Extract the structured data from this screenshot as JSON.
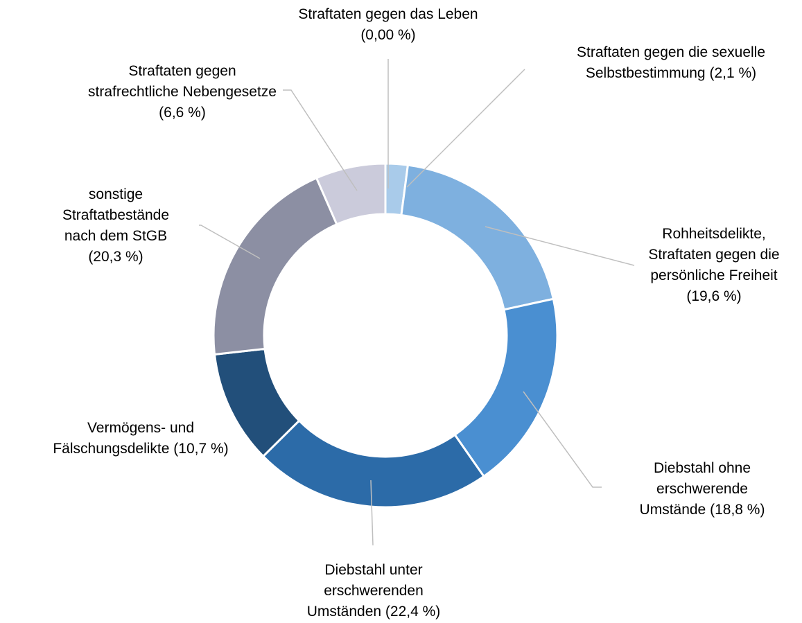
{
  "chart_data": {
    "type": "donut",
    "categories": [
      "Straftaten gegen das Leben",
      "Straftaten gegen die sexuelle Selbstbestimmung",
      "Rohheitsdelikte, Straftaten gegen die persönliche Freiheit",
      "Diebstahl ohne erschwerende Umstände",
      "Diebstahl unter erschwerenden Umständen",
      "Vermögens- und Fälschungsdelikte",
      "sonstige Straftatbestände nach dem StGB",
      "Straftaten gegen strafrechtliche Nebengesetze"
    ],
    "values": [
      0,
      2.1,
      19.6,
      18.8,
      22.4,
      10.7,
      20.3,
      6.6
    ],
    "value_labels": [
      "(0,00 %)",
      "(2,1 %)",
      "(19,6 %)",
      "(18,8 %)",
      "(22,4 %)",
      "(10,7 %)",
      "(20,3 %)",
      "(6,6 %)"
    ],
    "colors": [
      "#9dc3e6",
      "#a9cbea",
      "#7eb0df",
      "#4a8fd1",
      "#2c6ba8",
      "#224f7a",
      "#8c8fa3",
      "#cbcbdb"
    ]
  }
}
